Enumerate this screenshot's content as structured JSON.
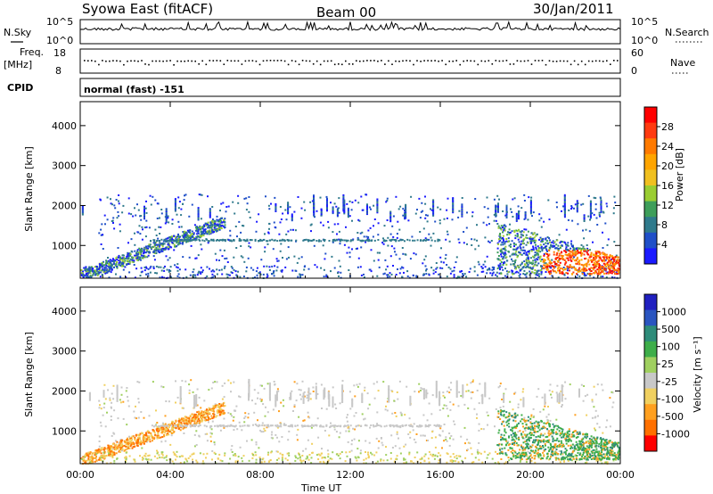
{
  "header": {
    "station": "Syowa East (fitACF)",
    "beam": "Beam 00",
    "date": "30/Jan/2011"
  },
  "top_panels": {
    "nsky_label": "N.Sky",
    "nsky_ticks": [
      "10^5",
      "10^0"
    ],
    "nsearch_label": "N.Search",
    "nsearch_ticks": [
      "10^5",
      "10^0"
    ],
    "freq_label_1": "Freq.",
    "freq_label_2": "[MHz]",
    "freq_ticks": [
      "18",
      "8"
    ],
    "nave_label": "Nave",
    "nave_ticks": [
      "60",
      "0"
    ],
    "cpid_label": "CPID",
    "cpid_value": "normal (fast) -151"
  },
  "chart_data": [
    {
      "type": "heatmap",
      "name": "power",
      "ylabel": "Slant Range [km]",
      "ylim": [
        180,
        4600
      ],
      "yticks": [
        "1000",
        "2000",
        "3000",
        "4000"
      ],
      "colorbar_label": "Power [dB]",
      "colorbar_ticks": [
        "4",
        "8",
        "12",
        "16",
        "20",
        "24",
        "28"
      ],
      "colors": [
        "#1a1aff",
        "#1f4fc8",
        "#2f7a8c",
        "#3e9e5a",
        "#9acd32",
        "#f0c020",
        "#ffa500",
        "#ff7a00",
        "#ff3a10",
        "#ff0000"
      ],
      "regions": [
        {
          "desc": "morning arc",
          "t": [
            0.0,
            6.4
          ],
          "r": [
            250,
            1800
          ],
          "level": "low-mid"
        },
        {
          "desc": "scattered echoes",
          "t": [
            1.0,
            23.5
          ],
          "r": [
            600,
            2300
          ],
          "level": "low"
        },
        {
          "desc": "evening strong echoes",
          "t": [
            20.5,
            24.0
          ],
          "r": [
            300,
            900
          ],
          "level": "high"
        }
      ]
    },
    {
      "type": "heatmap",
      "name": "velocity",
      "xlabel": "Time UT",
      "xticks": [
        "00:00",
        "04:00",
        "08:00",
        "12:00",
        "16:00",
        "20:00",
        "00:00"
      ],
      "ylabel": "Slant Range [km]",
      "ylim": [
        180,
        4600
      ],
      "yticks": [
        "1000",
        "2000",
        "3000",
        "4000"
      ],
      "colorbar_label": "Velocity [m s⁻¹]",
      "colorbar_ticks": [
        "1000",
        "500",
        "100",
        "25",
        "-25",
        "-100",
        "-500",
        "-1000"
      ],
      "colors": [
        "#2020c0",
        "#2a55c0",
        "#2e8c7a",
        "#3eae4a",
        "#a0d060",
        "#c8c8c8",
        "#f0d060",
        "#ffa020",
        "#ff7000",
        "#ff0000"
      ]
    }
  ]
}
